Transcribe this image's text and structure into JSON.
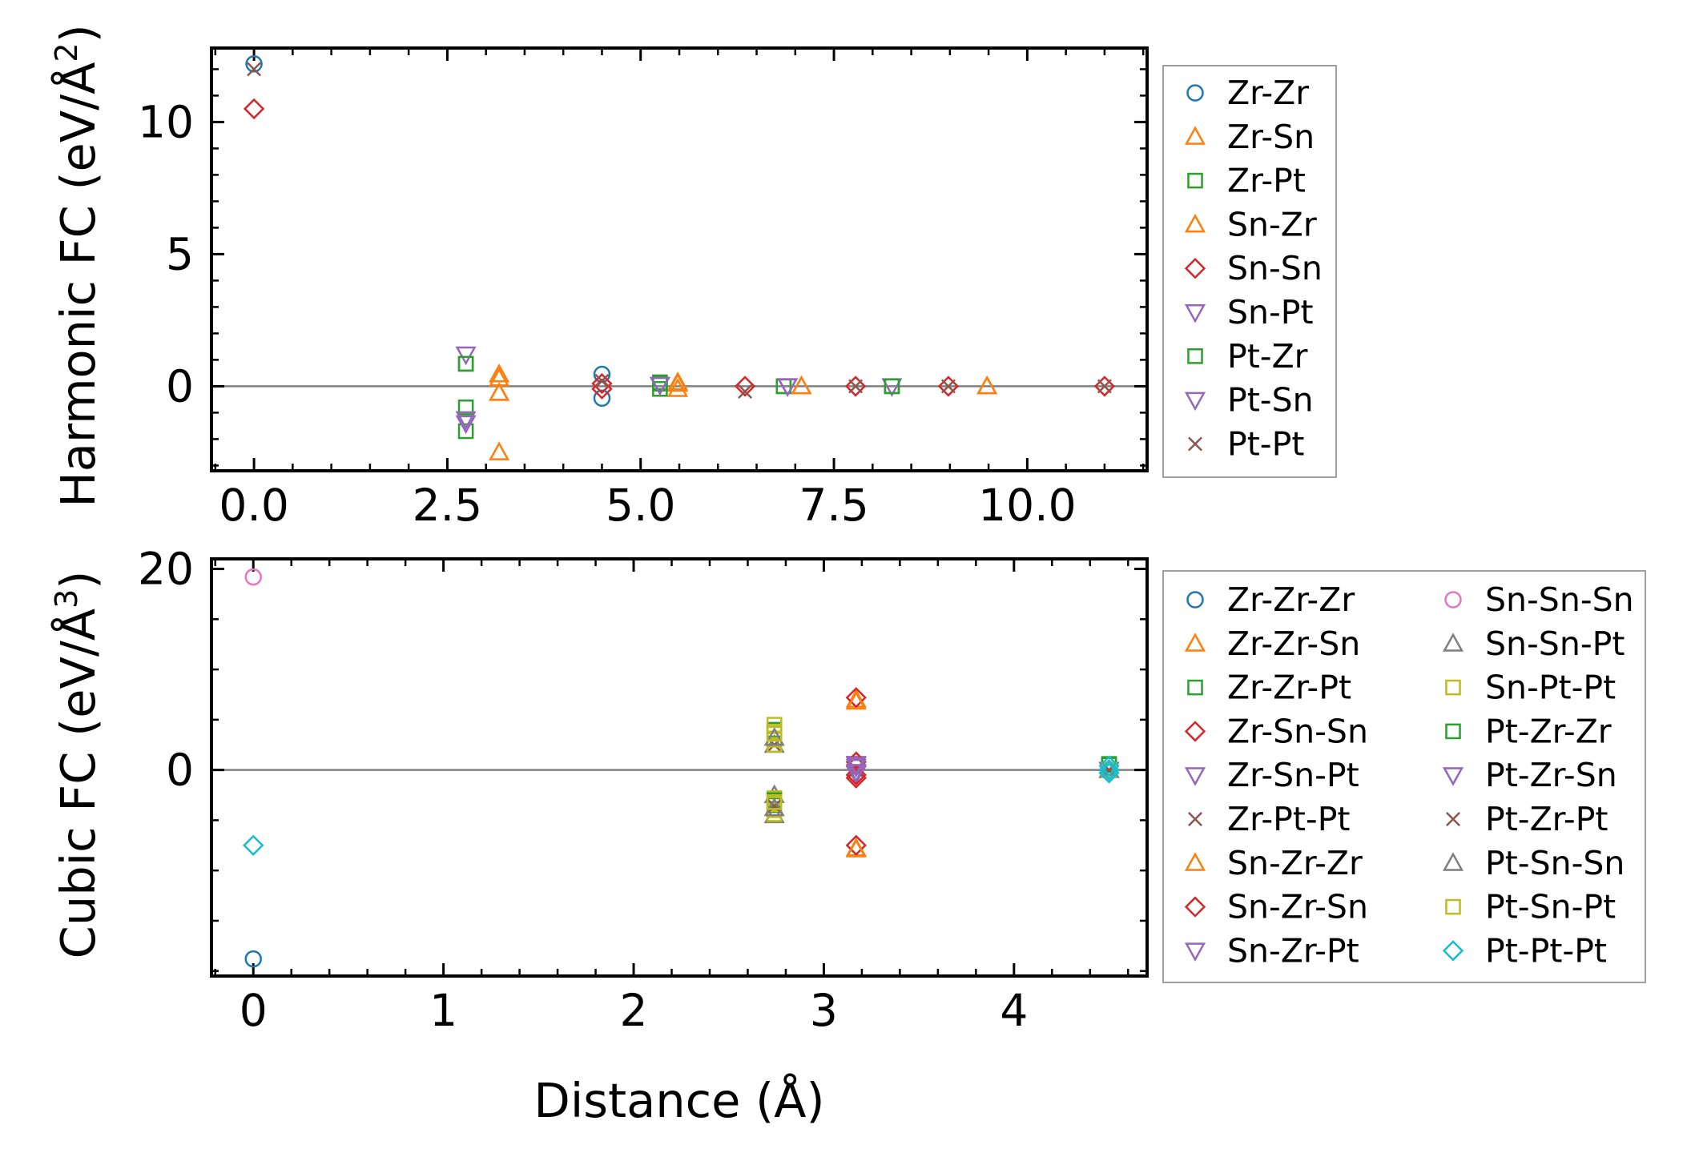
{
  "chart_data": [
    {
      "type": "scatter",
      "ylabel_main": "Harmonic FC (eV/Å",
      "ylabel_sup": "2",
      "ylabel_close": ")",
      "xlabel": "",
      "xlim": [
        -0.55,
        11.55
      ],
      "ylim": [
        -3.2,
        12.8
      ],
      "xticks": [
        0.0,
        2.5,
        5.0,
        7.5,
        10.0
      ],
      "xtick_labels": [
        "0.0",
        "2.5",
        "5.0",
        "7.5",
        "10.0"
      ],
      "xminor_step": 0.5,
      "yticks": [
        0,
        5,
        10
      ],
      "ytick_labels": [
        "0",
        "5",
        "10"
      ],
      "yminor_step": 1,
      "zero_line": true,
      "legend_position": "outside-right",
      "legend_columns": 1,
      "series": [
        {
          "name": "Zr-Zr",
          "marker": "circle",
          "color": "#1f77b4",
          "x": [
            0.0,
            4.5,
            4.5
          ],
          "y": [
            12.2,
            0.45,
            -0.45
          ]
        },
        {
          "name": "Zr-Sn",
          "marker": "triangle-up",
          "color": "#ff7f0e",
          "x": [
            3.17,
            3.17,
            3.17,
            5.48,
            5.48,
            7.08,
            9.48
          ],
          "y": [
            0.3,
            -0.25,
            -2.5,
            0.1,
            -0.1,
            0.0,
            0.0
          ]
        },
        {
          "name": "Zr-Pt",
          "marker": "square",
          "color": "#2ca02c",
          "x": [
            2.74,
            2.74,
            2.74,
            5.25,
            5.25,
            6.85,
            8.25
          ],
          "y": [
            0.85,
            -0.8,
            -1.7,
            0.15,
            -0.1,
            0.0,
            0.0
          ]
        },
        {
          "name": "Sn-Zr",
          "marker": "triangle-up",
          "color": "#ff7f0e",
          "x": [
            3.17,
            3.17,
            5.48,
            7.08,
            9.48
          ],
          "y": [
            0.45,
            -0.25,
            0.15,
            0.0,
            0.0
          ]
        },
        {
          "name": "Sn-Sn",
          "marker": "diamond",
          "color": "#d62728",
          "x": [
            0.0,
            4.5,
            4.5,
            6.35,
            7.78,
            8.98,
            11.0
          ],
          "y": [
            10.5,
            0.1,
            -0.1,
            0.0,
            0.0,
            0.0,
            0.0
          ]
        },
        {
          "name": "Sn-Pt",
          "marker": "triangle-down",
          "color": "#9467bd",
          "x": [
            2.74,
            2.74,
            5.25,
            6.9,
            8.25
          ],
          "y": [
            1.2,
            -1.4,
            0.05,
            0.0,
            0.0
          ]
        },
        {
          "name": "Pt-Zr",
          "marker": "square",
          "color": "#2ca02c",
          "x": [
            2.74,
            5.25,
            6.85,
            8.25
          ],
          "y": [
            0.85,
            0.1,
            0.0,
            0.0
          ]
        },
        {
          "name": "Pt-Sn",
          "marker": "triangle-down",
          "color": "#9467bd",
          "x": [
            2.74,
            5.25,
            6.9
          ],
          "y": [
            -1.25,
            0.05,
            0.0
          ]
        },
        {
          "name": "Pt-Pt",
          "marker": "x",
          "color": "#8c564b",
          "x": [
            0.0,
            4.5,
            6.35,
            7.78,
            8.98,
            11.0
          ],
          "y": [
            12.0,
            0.2,
            -0.2,
            0.0,
            0.0,
            0.0
          ]
        }
      ]
    },
    {
      "type": "scatter",
      "ylabel_main": "Cubic FC (eV/Å",
      "ylabel_sup": "3",
      "ylabel_close": ")",
      "xlabel": "Distance (Å)",
      "xlim": [
        -0.22,
        4.7
      ],
      "ylim": [
        -20.5,
        21.0
      ],
      "xticks": [
        0,
        1,
        2,
        3,
        4
      ],
      "xtick_labels": [
        "0",
        "1",
        "2",
        "3",
        "4"
      ],
      "xminor_step": 0.2,
      "yticks": [
        0,
        20
      ],
      "ytick_labels": [
        "0",
        "20"
      ],
      "yminor_step": 5,
      "zero_line": true,
      "legend_position": "outside-right",
      "legend_columns": 2,
      "series": [
        {
          "name": "Zr-Zr-Zr",
          "marker": "circle",
          "color": "#1f77b4",
          "x": [
            0.0,
            4.5
          ],
          "y": [
            -18.8,
            0.0
          ]
        },
        {
          "name": "Zr-Zr-Sn",
          "marker": "triangle-up",
          "color": "#ff7f0e",
          "x": [
            3.17,
            3.17,
            4.5
          ],
          "y": [
            7.0,
            -7.8,
            0.0
          ]
        },
        {
          "name": "Zr-Zr-Pt",
          "marker": "square",
          "color": "#2ca02c",
          "x": [
            2.74,
            2.74,
            4.5
          ],
          "y": [
            4.0,
            -3.5,
            0.5
          ]
        },
        {
          "name": "Zr-Sn-Sn",
          "marker": "diamond",
          "color": "#d62728",
          "x": [
            3.17,
            3.17,
            3.17,
            3.17,
            4.5
          ],
          "y": [
            7.2,
            -7.5,
            0.4,
            -0.8,
            0.0
          ]
        },
        {
          "name": "Zr-Sn-Pt",
          "marker": "triangle-down",
          "color": "#9467bd",
          "x": [
            3.17,
            3.17,
            4.5
          ],
          "y": [
            0.6,
            -0.4,
            0.0
          ]
        },
        {
          "name": "Zr-Pt-Pt",
          "marker": "x",
          "color": "#8c564b",
          "x": [
            2.74,
            3.17,
            4.5
          ],
          "y": [
            2.5,
            0.0,
            0.0
          ]
        },
        {
          "name": "Sn-Zr-Zr",
          "marker": "triangle-up",
          "color": "#ff7f0e",
          "x": [
            3.17,
            3.17
          ],
          "y": [
            6.8,
            -7.9
          ]
        },
        {
          "name": "Sn-Zr-Sn",
          "marker": "diamond",
          "color": "#d62728",
          "x": [
            3.17,
            3.17,
            4.5
          ],
          "y": [
            0.8,
            -0.5,
            0.0
          ]
        },
        {
          "name": "Sn-Zr-Pt",
          "marker": "triangle-down",
          "color": "#9467bd",
          "x": [
            3.17,
            3.17,
            4.5
          ],
          "y": [
            0.3,
            -0.2,
            0.0
          ]
        },
        {
          "name": "Sn-Sn-Sn",
          "marker": "circle",
          "color": "#e377c2",
          "x": [
            0.0,
            4.5
          ],
          "y": [
            19.2,
            0.0
          ]
        },
        {
          "name": "Sn-Sn-Pt",
          "marker": "triangle-up",
          "color": "#7f7f7f",
          "x": [
            2.74,
            2.74,
            2.74,
            4.5
          ],
          "y": [
            2.5,
            -2.5,
            -4.5,
            0.0
          ]
        },
        {
          "name": "Sn-Pt-Pt",
          "marker": "square",
          "color": "#bcbd22",
          "x": [
            2.74,
            2.74,
            2.74,
            2.74,
            2.74,
            2.74,
            2.74,
            2.74
          ],
          "y": [
            4.5,
            3.8,
            3.0,
            2.5,
            -2.8,
            -3.4,
            -4.0,
            -4.4
          ]
        },
        {
          "name": "Pt-Zr-Zr",
          "marker": "square",
          "color": "#2ca02c",
          "x": [
            2.74,
            4.5
          ],
          "y": [
            -3.0,
            0.6
          ]
        },
        {
          "name": "Pt-Zr-Sn",
          "marker": "triangle-down",
          "color": "#9467bd",
          "x": [
            3.17,
            4.5
          ],
          "y": [
            0.5,
            0.0
          ]
        },
        {
          "name": "Pt-Zr-Pt",
          "marker": "x",
          "color": "#8c564b",
          "x": [
            2.74,
            4.5
          ],
          "y": [
            -3.6,
            0.0
          ]
        },
        {
          "name": "Pt-Sn-Sn",
          "marker": "triangle-up",
          "color": "#7f7f7f",
          "x": [
            2.74,
            2.74,
            4.5
          ],
          "y": [
            3.2,
            -3.8,
            0.0
          ]
        },
        {
          "name": "Pt-Sn-Pt",
          "marker": "square",
          "color": "#bcbd22",
          "x": [
            2.74,
            2.74,
            4.5
          ],
          "y": [
            3.6,
            -3.2,
            0.0
          ]
        },
        {
          "name": "Pt-Pt-Pt",
          "marker": "diamond",
          "color": "#17becf",
          "x": [
            0.0,
            4.5,
            4.5,
            4.5
          ],
          "y": [
            -7.5,
            0.0,
            0.4,
            -0.3
          ]
        }
      ]
    }
  ]
}
